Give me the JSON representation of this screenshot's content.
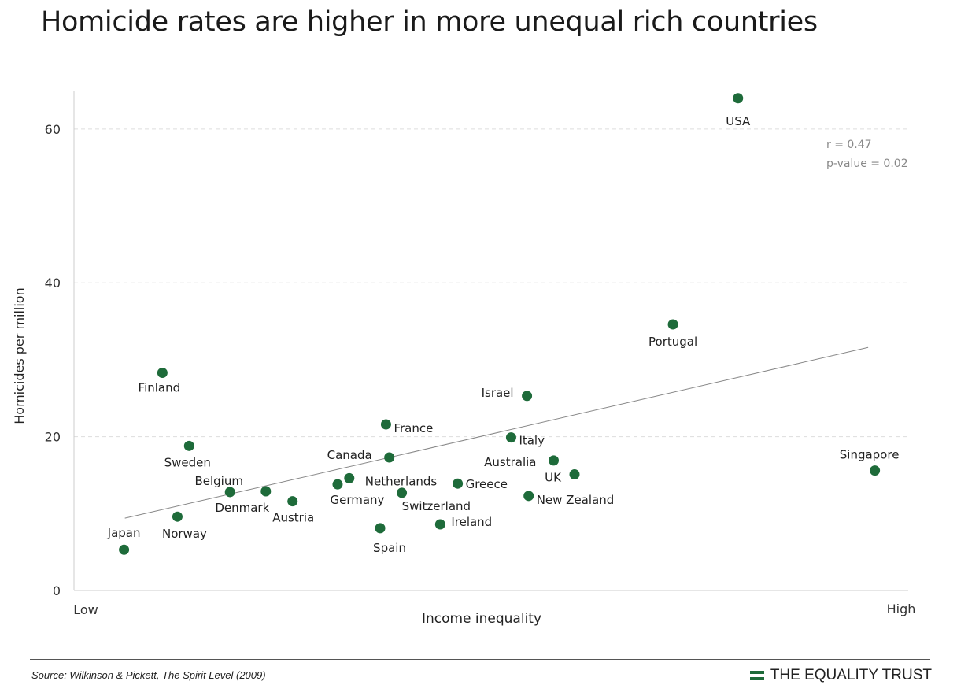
{
  "title": "Homicide rates are higher in more unequal rich countries",
  "source": "Source: Wilkinson & Pickett, The Spirit Level (2009)",
  "logo_text": "THE EQUALITY TRUST",
  "colors": {
    "point": "#1e6b3a",
    "trend": "#888888",
    "grid": "#dddddd",
    "logo": "#1e6b3a"
  },
  "chart_data": {
    "type": "scatter",
    "title": "Homicide rates are higher in more unequal rich countries",
    "xlabel": "Income inequality",
    "ylabel": "Homicides per million",
    "x_tick_labels": [
      "Low",
      "High"
    ],
    "xlim": [
      0,
      100
    ],
    "ylim": [
      0,
      65
    ],
    "yticks": [
      0,
      20,
      40,
      60
    ],
    "grid": "horizontal dashed",
    "annotation": [
      "r = 0.47",
      "p-value = 0.02"
    ],
    "trendline": {
      "x": [
        6.1,
        95.2
      ],
      "y": [
        9.4,
        31.6
      ]
    },
    "points": [
      {
        "label": "USA",
        "x": 79.6,
        "y": 64.0
      },
      {
        "label": "Portugal",
        "x": 71.8,
        "y": 34.6
      },
      {
        "label": "Finland",
        "x": 10.6,
        "y": 28.3
      },
      {
        "label": "Israel",
        "x": 54.3,
        "y": 25.3
      },
      {
        "label": "France",
        "x": 37.4,
        "y": 21.6
      },
      {
        "label": "Italy",
        "x": 52.4,
        "y": 19.9
      },
      {
        "label": "Sweden",
        "x": 13.8,
        "y": 18.8
      },
      {
        "label": "Canada",
        "x": 37.8,
        "y": 17.3
      },
      {
        "label": "Australia",
        "x": 57.5,
        "y": 16.9
      },
      {
        "label": "UK",
        "x": 60.0,
        "y": 15.1
      },
      {
        "label": "Singapore",
        "x": 96.0,
        "y": 15.6
      },
      {
        "label": "Netherlands",
        "x": 33.0,
        "y": 14.6
      },
      {
        "label": "Germany",
        "x": 31.6,
        "y": 13.8
      },
      {
        "label": "Greece",
        "x": 46.0,
        "y": 13.9
      },
      {
        "label": "Belgium",
        "x": 18.7,
        "y": 12.8
      },
      {
        "label": "Denmark",
        "x": 23.0,
        "y": 12.9
      },
      {
        "label": "Switzerland",
        "x": 39.3,
        "y": 12.7
      },
      {
        "label": "New Zealand",
        "x": 54.5,
        "y": 12.3
      },
      {
        "label": "Austria",
        "x": 26.2,
        "y": 11.6
      },
      {
        "label": "Norway",
        "x": 12.4,
        "y": 9.6
      },
      {
        "label": "Spain",
        "x": 36.7,
        "y": 8.1
      },
      {
        "label": "Ireland",
        "x": 43.9,
        "y": 8.6
      },
      {
        "label": "Japan",
        "x": 6.0,
        "y": 5.3
      }
    ]
  }
}
